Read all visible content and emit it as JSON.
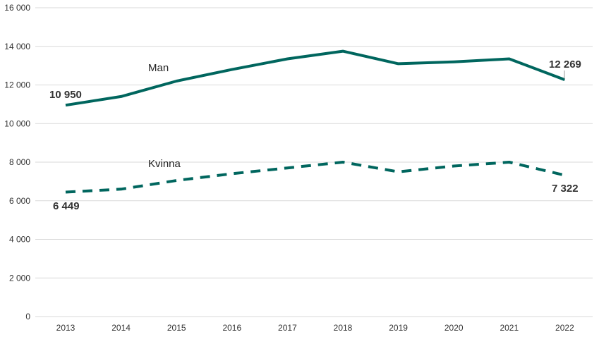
{
  "chart_data": {
    "type": "line",
    "x": [
      "2013",
      "2014",
      "2015",
      "2016",
      "2017",
      "2018",
      "2019",
      "2020",
      "2021",
      "2022"
    ],
    "ylim": [
      0,
      16000
    ],
    "yticks": [
      0,
      2000,
      4000,
      6000,
      8000,
      10000,
      12000,
      14000,
      16000
    ],
    "ytick_labels": [
      "0",
      "2 000",
      "4 000",
      "6 000",
      "8 000",
      "10 000",
      "12 000",
      "14 000",
      "16 000"
    ],
    "grid": true,
    "series": [
      {
        "name": "Man",
        "style": "solid",
        "color": "#00665e",
        "values": [
          10950,
          11400,
          12200,
          12800,
          13350,
          13750,
          13100,
          13200,
          13350,
          12269
        ],
        "first_label": "10 950",
        "last_label": "12 269"
      },
      {
        "name": "Kvinna",
        "style": "dashed",
        "color": "#00665e",
        "values": [
          6449,
          6600,
          7050,
          7400,
          7700,
          8000,
          7500,
          7800,
          8000,
          7322
        ],
        "first_label": "6 449",
        "last_label": "7 322"
      }
    ]
  }
}
